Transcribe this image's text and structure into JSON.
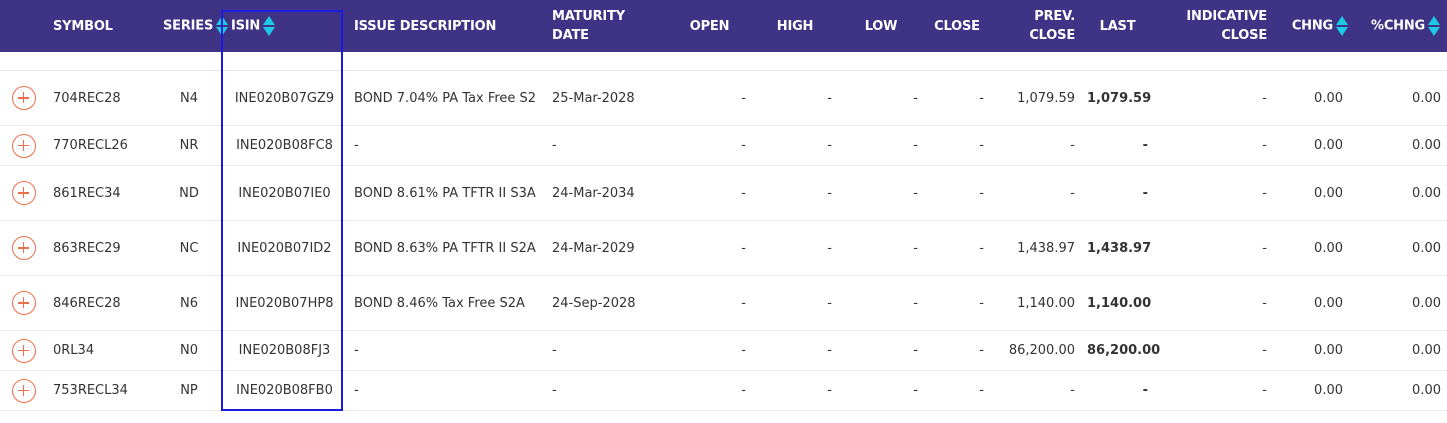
{
  "columns": {
    "symbol": "SYMBOL",
    "series": "SERIES",
    "isin": "ISIN",
    "issue_description": "ISSUE DESCRIPTION",
    "maturity_date_1": "MATURITY",
    "maturity_date_2": "DATE",
    "open": "OPEN",
    "high": "HIGH",
    "low": "LOW",
    "close": "CLOSE",
    "prev_close_1": "PREV.",
    "prev_close_2": "CLOSE",
    "last": "LAST",
    "indicative_close_1": "INDICATIVE",
    "indicative_close_2": "CLOSE",
    "chng": "CHNG",
    "pchng": "%CHNG"
  },
  "rows": [
    {
      "symbol": "704REC28",
      "series": "N4",
      "isin": "INE020B07GZ9",
      "desc": "BOND 7.04% PA Tax Free S2",
      "maturity": "25-Mar-2028",
      "open": "-",
      "high": "-",
      "low": "-",
      "close": "-",
      "prev_close": "1,079.59",
      "last": "1,079.59",
      "indicative": "-",
      "chng": "0.00",
      "pchng": "0.00"
    },
    {
      "symbol": "770RECL26",
      "series": "NR",
      "isin": "INE020B08FC8",
      "desc": "-",
      "maturity": "-",
      "open": "-",
      "high": "-",
      "low": "-",
      "close": "-",
      "prev_close": "-",
      "last": "-",
      "indicative": "-",
      "chng": "0.00",
      "pchng": "0.00"
    },
    {
      "symbol": "861REC34",
      "series": "ND",
      "isin": "INE020B07IE0",
      "desc": "BOND 8.61% PA TFTR II S3A",
      "maturity": "24-Mar-2034",
      "open": "-",
      "high": "-",
      "low": "-",
      "close": "-",
      "prev_close": "-",
      "last": "-",
      "indicative": "-",
      "chng": "0.00",
      "pchng": "0.00"
    },
    {
      "symbol": "863REC29",
      "series": "NC",
      "isin": "INE020B07ID2",
      "desc": "BOND 8.63% PA TFTR II S2A",
      "maturity": "24-Mar-2029",
      "open": "-",
      "high": "-",
      "low": "-",
      "close": "-",
      "prev_close": "1,438.97",
      "last": "1,438.97",
      "indicative": "-",
      "chng": "0.00",
      "pchng": "0.00"
    },
    {
      "symbol": "846REC28",
      "series": "N6",
      "isin": "INE020B07HP8",
      "desc": "BOND 8.46% Tax Free S2A",
      "maturity": "24-Sep-2028",
      "open": "-",
      "high": "-",
      "low": "-",
      "close": "-",
      "prev_close": "1,140.00",
      "last": "1,140.00",
      "indicative": "-",
      "chng": "0.00",
      "pchng": "0.00"
    },
    {
      "symbol": "0RL34",
      "series": "N0",
      "isin": "INE020B08FJ3",
      "desc": "-",
      "maturity": "-",
      "open": "-",
      "high": "-",
      "low": "-",
      "close": "-",
      "prev_close": "86,200.00",
      "last": "86,200.00",
      "indicative": "-",
      "chng": "0.00",
      "pchng": "0.00"
    },
    {
      "symbol": "753RECL34",
      "series": "NP",
      "isin": "INE020B08FB0",
      "desc": "-",
      "maturity": "-",
      "open": "-",
      "high": "-",
      "low": "-",
      "close": "-",
      "prev_close": "-",
      "last": "-",
      "indicative": "-",
      "chng": "0.00",
      "pchng": "0.00"
    }
  ],
  "colors": {
    "header_bg": "#3f3386",
    "sort_arrow": "#1ec9e6",
    "expand_icon": "#e8704a",
    "highlight_box": "#1a1ae0"
  }
}
